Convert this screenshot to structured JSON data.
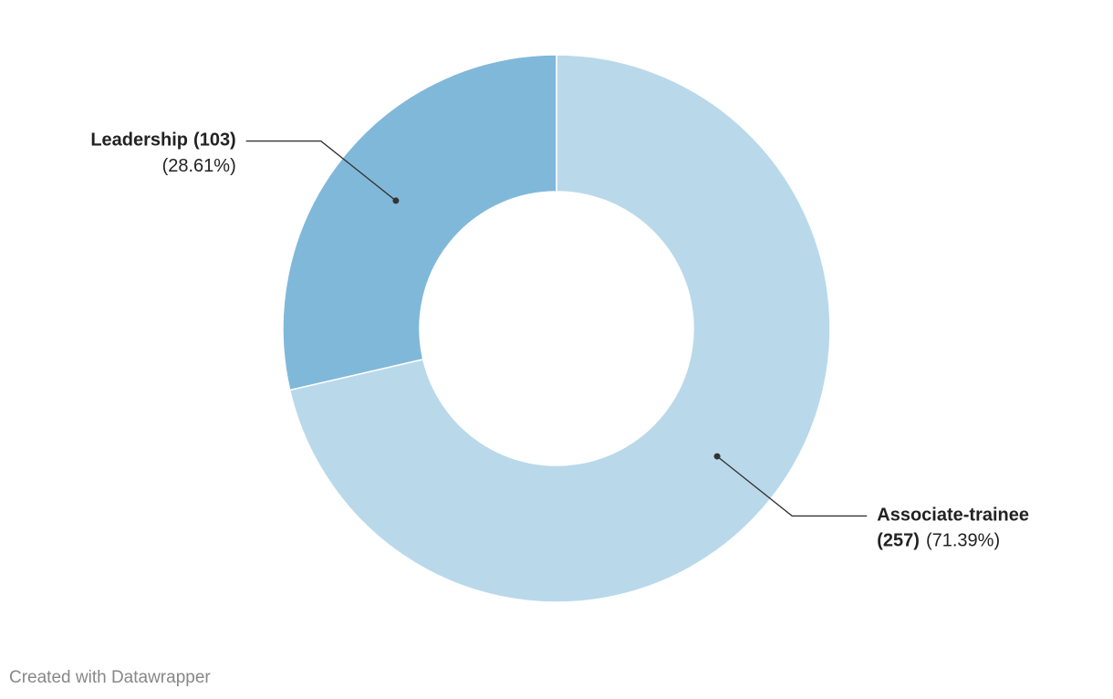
{
  "chart_data": {
    "type": "donut",
    "categories": [
      "Associate-trainee",
      "Leadership"
    ],
    "values": [
      257,
      103
    ],
    "value_labels": [
      "(257)",
      "(103)"
    ],
    "percentages": [
      71.39,
      28.61
    ],
    "percentage_labels": [
      "(71.39%)",
      "(28.61%)"
    ],
    "colors": [
      "#b9d9ea",
      "#80b8d9"
    ],
    "credit": "Created with Datawrapper"
  }
}
